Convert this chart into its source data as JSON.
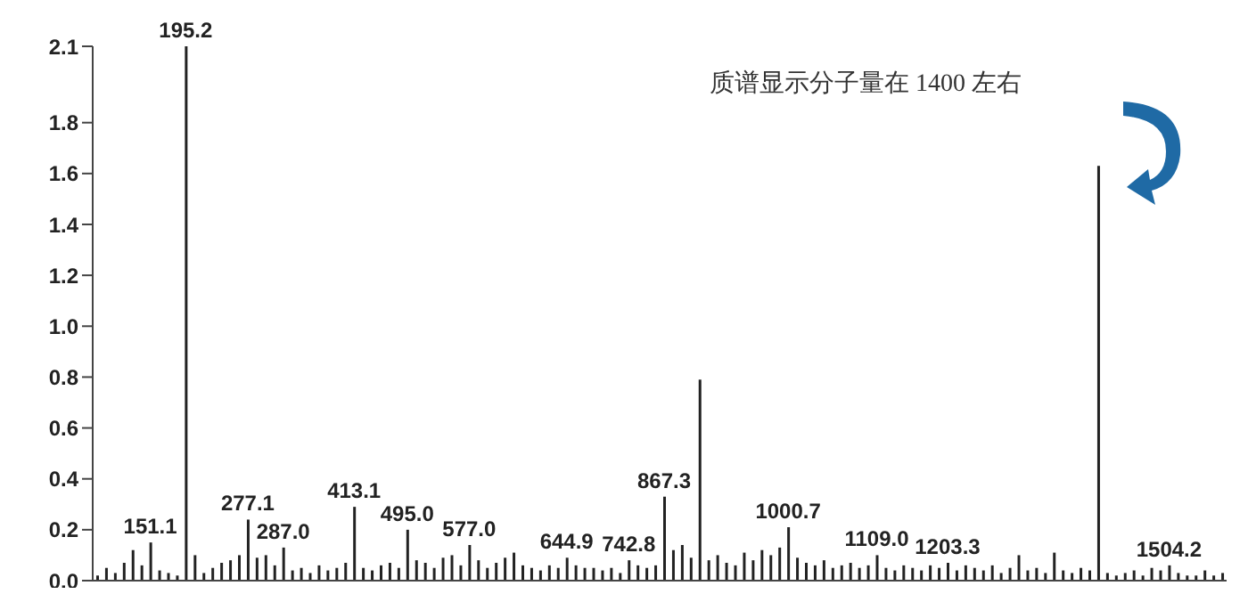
{
  "chart_data": {
    "type": "bar",
    "color": "#222222",
    "categories": [
      null,
      null,
      null,
      null,
      null,
      null,
      null,
      null,
      null,
      null,
      null,
      null,
      null,
      null,
      null,
      null,
      null,
      null,
      null,
      null,
      null,
      null,
      null,
      null,
      null,
      null,
      null,
      null,
      null,
      null,
      null,
      null,
      null,
      null,
      null,
      null,
      null,
      null,
      null,
      null,
      null,
      null,
      null,
      null,
      null,
      null,
      null,
      null,
      null,
      null,
      null,
      null,
      null,
      null,
      null,
      null,
      null,
      null,
      null,
      null,
      null,
      null,
      null,
      null,
      null,
      null,
      null,
      null,
      null,
      null,
      null,
      null,
      null,
      null,
      null,
      null,
      null,
      null,
      null,
      null,
      null,
      null,
      null,
      null,
      null,
      null,
      null,
      null,
      null,
      null,
      null,
      null,
      null,
      null,
      null,
      null,
      null,
      null,
      null,
      null,
      null,
      null,
      null,
      null,
      null,
      null,
      null,
      null,
      null,
      null,
      null,
      null,
      null,
      null,
      null,
      null,
      null,
      null,
      null,
      null,
      null,
      null,
      null,
      null,
      null,
      null,
      null,
      null
    ],
    "values": [
      0.02,
      0.05,
      0.03,
      0.07,
      0.12,
      0.06,
      0.15,
      0.04,
      0.03,
      0.02,
      2.1,
      0.1,
      0.03,
      0.05,
      0.07,
      0.08,
      0.1,
      0.24,
      0.09,
      0.1,
      0.06,
      0.13,
      0.04,
      0.05,
      0.03,
      0.06,
      0.04,
      0.05,
      0.07,
      0.29,
      0.05,
      0.04,
      0.06,
      0.07,
      0.05,
      0.2,
      0.08,
      0.07,
      0.05,
      0.09,
      0.1,
      0.06,
      0.14,
      0.08,
      0.05,
      0.07,
      0.09,
      0.11,
      0.06,
      0.05,
      0.04,
      0.06,
      0.05,
      0.09,
      0.06,
      0.05,
      0.05,
      0.04,
      0.05,
      0.03,
      0.08,
      0.06,
      0.05,
      0.06,
      0.33,
      0.12,
      0.14,
      0.09,
      0.79,
      0.08,
      0.1,
      0.07,
      0.06,
      0.11,
      0.08,
      0.12,
      0.1,
      0.13,
      0.21,
      0.09,
      0.07,
      0.06,
      0.08,
      0.05,
      0.06,
      0.07,
      0.05,
      0.06,
      0.1,
      0.05,
      0.04,
      0.06,
      0.05,
      0.04,
      0.06,
      0.05,
      0.07,
      0.04,
      0.06,
      0.05,
      0.04,
      0.06,
      0.03,
      0.05,
      0.1,
      0.04,
      0.05,
      0.03,
      0.11,
      0.04,
      0.03,
      0.05,
      0.04,
      1.63,
      0.03,
      0.02,
      0.03,
      0.04,
      0.02,
      0.05,
      0.04,
      0.06,
      0.03,
      0.02,
      0.02,
      0.04,
      0.02,
      0.03
    ],
    "ylim": [
      0,
      2.1
    ],
    "yticks": [
      {
        "value": 0,
        "label": "0.0"
      },
      {
        "value": 0.2,
        "label": "0.2"
      },
      {
        "value": 0.4,
        "label": "0.4"
      },
      {
        "value": 0.6,
        "label": "0.6"
      },
      {
        "value": 0.8,
        "label": "0.8"
      },
      {
        "value": 1,
        "label": "1.0"
      },
      {
        "value": 1.2,
        "label": "1.2"
      },
      {
        "value": 1.4,
        "label": "1.4"
      },
      {
        "value": 1.6,
        "label": "1.6"
      },
      {
        "value": 1.8,
        "label": "1.8"
      },
      {
        "value": 2.1,
        "label": "2.1"
      }
    ],
    "tick_labels": "y",
    "grid": false,
    "legend": false,
    "annotations": [
      "质谱显示分子量在 1400 左右",
      {
        "text": "151.1",
        "y": 0.15
      },
      {
        "text": "195.2",
        "y": 2.1
      },
      {
        "text": "277.1",
        "y": 0.24
      },
      {
        "text": "287.0",
        "y": 0.13
      },
      {
        "text": "413.1",
        "y": 0.29
      },
      {
        "text": "495.0",
        "y": 0.2
      },
      {
        "text": "577.0",
        "y": 0.14
      },
      {
        "text": "644.9",
        "y": 0.09
      },
      {
        "text": "742.8",
        "y": 0.08
      },
      {
        "text": "867.3",
        "y": 0.33
      },
      {
        "text": "1000.7",
        "y": 0.21
      },
      {
        "text": "1109.0",
        "y": 0.1
      },
      {
        "text": "1203.3",
        "y": 0.07
      },
      {
        "text": "1504.2",
        "y": 0.06
      }
    ]
  }
}
